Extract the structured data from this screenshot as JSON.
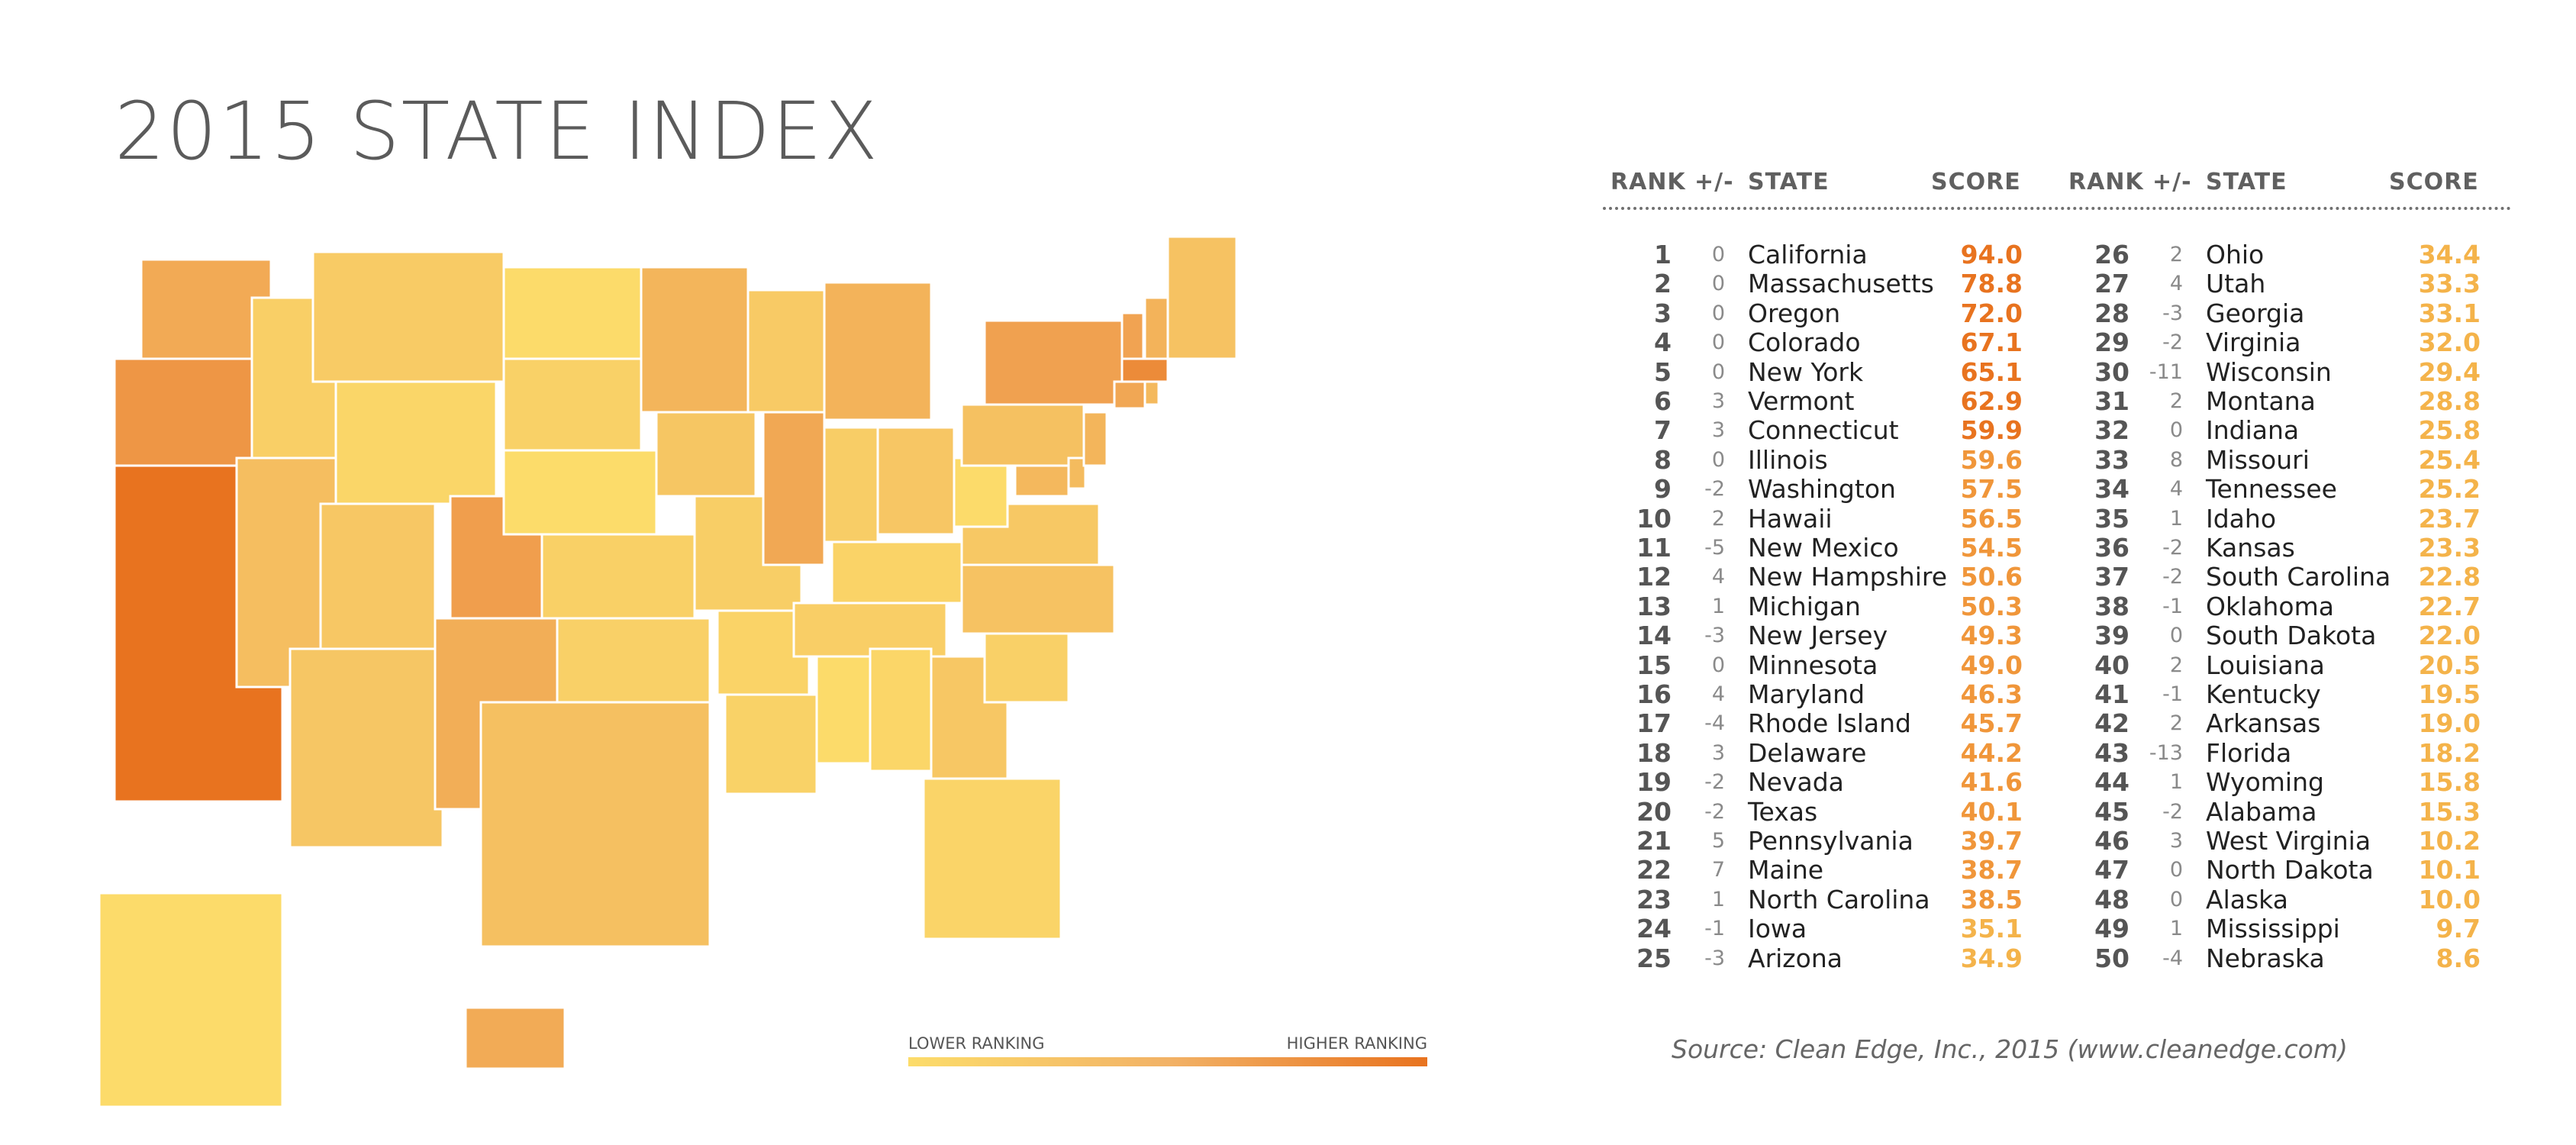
{
  "title": "2015 STATE INDEX",
  "headers": {
    "rank": "RANK",
    "change": "+/-",
    "state": "STATE",
    "score": "SCORE"
  },
  "legend": {
    "low": "LOWER RANKING",
    "high": "HIGHER RANKING",
    "low_color": "#fcdc6a",
    "high_color": "#e8731f"
  },
  "source": "Source: Clean Edge, Inc., 2015 (www.cleanedge.com)",
  "chart_data": {
    "type": "table",
    "title": "2015 STATE INDEX",
    "columns": [
      "RANK",
      "+/-",
      "STATE",
      "SCORE"
    ],
    "rows": [
      {
        "rank": "1",
        "change": "0",
        "state": "California",
        "score": "94.0"
      },
      {
        "rank": "2",
        "change": "0",
        "state": "Massachusetts",
        "score": "78.8"
      },
      {
        "rank": "3",
        "change": "0",
        "state": "Oregon",
        "score": "72.0"
      },
      {
        "rank": "4",
        "change": "0",
        "state": "Colorado",
        "score": "67.1"
      },
      {
        "rank": "5",
        "change": "0",
        "state": "New York",
        "score": "65.1"
      },
      {
        "rank": "6",
        "change": "3",
        "state": "Vermont",
        "score": "62.9"
      },
      {
        "rank": "7",
        "change": "3",
        "state": "Connecticut",
        "score": "59.9"
      },
      {
        "rank": "8",
        "change": "0",
        "state": "Illinois",
        "score": "59.6"
      },
      {
        "rank": "9",
        "change": "-2",
        "state": "Washington",
        "score": "57.5"
      },
      {
        "rank": "10",
        "change": "2",
        "state": "Hawaii",
        "score": "56.5"
      },
      {
        "rank": "11",
        "change": "-5",
        "state": "New Mexico",
        "score": "54.5"
      },
      {
        "rank": "12",
        "change": "4",
        "state": "New Hampshire",
        "score": "50.6"
      },
      {
        "rank": "13",
        "change": "1",
        "state": "Michigan",
        "score": "50.3"
      },
      {
        "rank": "14",
        "change": "-3",
        "state": "New Jersey",
        "score": "49.3"
      },
      {
        "rank": "15",
        "change": "0",
        "state": "Minnesota",
        "score": "49.0"
      },
      {
        "rank": "16",
        "change": "4",
        "state": "Maryland",
        "score": "46.3"
      },
      {
        "rank": "17",
        "change": "-4",
        "state": "Rhode Island",
        "score": "45.7"
      },
      {
        "rank": "18",
        "change": "3",
        "state": "Delaware",
        "score": "44.2"
      },
      {
        "rank": "19",
        "change": "-2",
        "state": "Nevada",
        "score": "41.6"
      },
      {
        "rank": "20",
        "change": "-2",
        "state": "Texas",
        "score": "40.1"
      },
      {
        "rank": "21",
        "change": "5",
        "state": "Pennsylvania",
        "score": "39.7"
      },
      {
        "rank": "22",
        "change": "7",
        "state": "Maine",
        "score": "38.7"
      },
      {
        "rank": "23",
        "change": "1",
        "state": "North Carolina",
        "score": "38.5"
      },
      {
        "rank": "24",
        "change": "-1",
        "state": "Iowa",
        "score": "35.1"
      },
      {
        "rank": "25",
        "change": "-3",
        "state": "Arizona",
        "score": "34.9"
      },
      {
        "rank": "26",
        "change": "2",
        "state": "Ohio",
        "score": "34.4"
      },
      {
        "rank": "27",
        "change": "4",
        "state": "Utah",
        "score": "33.3"
      },
      {
        "rank": "28",
        "change": "-3",
        "state": "Georgia",
        "score": "33.1"
      },
      {
        "rank": "29",
        "change": "-2",
        "state": "Virginia",
        "score": "32.0"
      },
      {
        "rank": "30",
        "change": "-11",
        "state": "Wisconsin",
        "score": "29.4"
      },
      {
        "rank": "31",
        "change": "2",
        "state": "Montana",
        "score": "28.8"
      },
      {
        "rank": "32",
        "change": "0",
        "state": "Indiana",
        "score": "25.8"
      },
      {
        "rank": "33",
        "change": "8",
        "state": "Missouri",
        "score": "25.4"
      },
      {
        "rank": "34",
        "change": "4",
        "state": "Tennessee",
        "score": "25.2"
      },
      {
        "rank": "35",
        "change": "1",
        "state": "Idaho",
        "score": "23.7"
      },
      {
        "rank": "36",
        "change": "-2",
        "state": "Kansas",
        "score": "23.3"
      },
      {
        "rank": "37",
        "change": "-2",
        "state": "South Carolina",
        "score": "22.8"
      },
      {
        "rank": "38",
        "change": "-1",
        "state": "Oklahoma",
        "score": "22.7"
      },
      {
        "rank": "39",
        "change": "0",
        "state": "South Dakota",
        "score": "22.0"
      },
      {
        "rank": "40",
        "change": "2",
        "state": "Louisiana",
        "score": "20.5"
      },
      {
        "rank": "41",
        "change": "-1",
        "state": "Kentucky",
        "score": "19.5"
      },
      {
        "rank": "42",
        "change": "2",
        "state": "Arkansas",
        "score": "19.0"
      },
      {
        "rank": "43",
        "change": "-13",
        "state": "Florida",
        "score": "18.2"
      },
      {
        "rank": "44",
        "change": "1",
        "state": "Wyoming",
        "score": "15.8"
      },
      {
        "rank": "45",
        "change": "-2",
        "state": "Alabama",
        "score": "15.3"
      },
      {
        "rank": "46",
        "change": "3",
        "state": "West Virginia",
        "score": "10.2"
      },
      {
        "rank": "47",
        "change": "0",
        "state": "North Dakota",
        "score": "10.1"
      },
      {
        "rank": "48",
        "change": "0",
        "state": "Alaska",
        "score": "10.0"
      },
      {
        "rank": "49",
        "change": "1",
        "state": "Mississippi",
        "score": "9.7"
      },
      {
        "rank": "50",
        "change": "-4",
        "state": "Nebraska",
        "score": "8.6"
      }
    ]
  }
}
